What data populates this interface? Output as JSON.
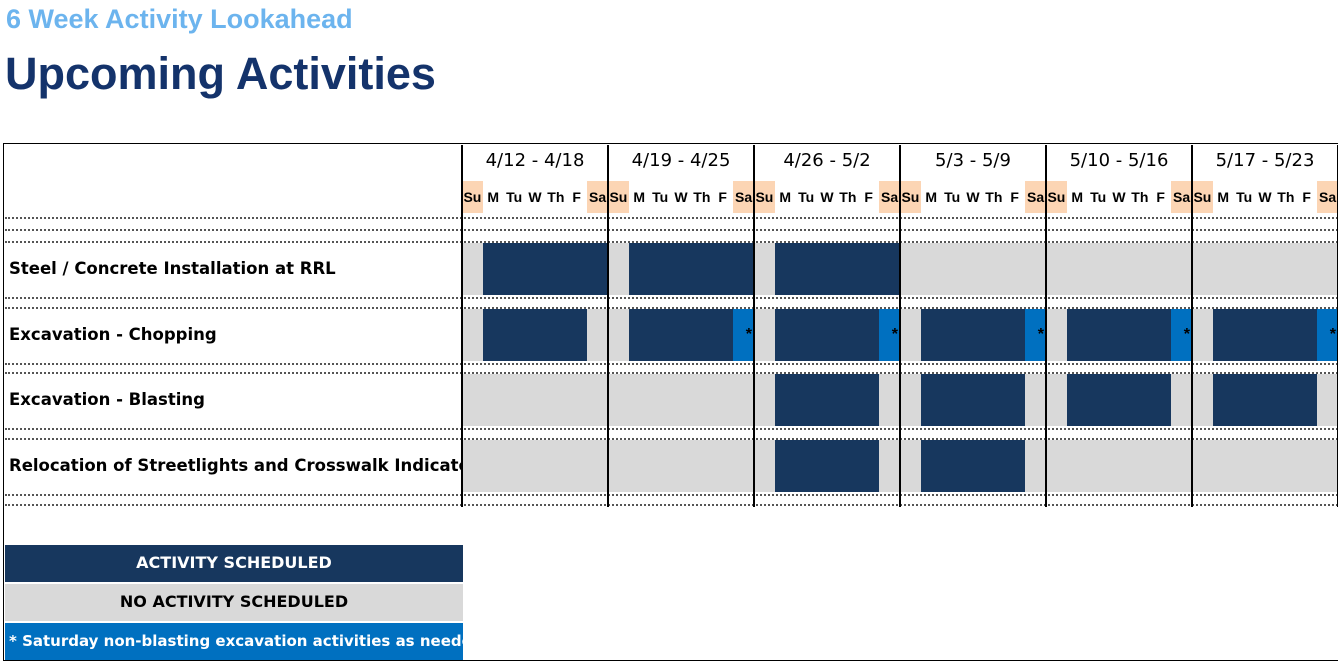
{
  "header": {
    "subtitle": "6 Week Activity Lookahead",
    "title": "Upcoming Activities"
  },
  "weeks": [
    "4/12 - 4/18",
    "4/19 - 4/25",
    "4/26 - 5/2",
    "5/3 - 5/9",
    "5/10 - 5/16",
    "5/17 - 5/23"
  ],
  "day_labels": [
    "Su",
    "M",
    "Tu",
    "W",
    "Th",
    "F",
    "Sa"
  ],
  "saturday_marker": "*",
  "activities": [
    {
      "label": "Steel / Concrete Installation at RRL",
      "weeks": [
        [
          1,
          0,
          0,
          0,
          0,
          0,
          0
        ],
        [
          1,
          0,
          0,
          0,
          0,
          0,
          0
        ],
        [
          1,
          0,
          0,
          0,
          0,
          0,
          0
        ],
        [
          1,
          1,
          1,
          1,
          1,
          1,
          1
        ],
        [
          1,
          1,
          1,
          1,
          1,
          1,
          1
        ],
        [
          1,
          1,
          1,
          1,
          1,
          1,
          1
        ]
      ]
    },
    {
      "label": "Excavation - Chopping",
      "weeks": [
        [
          1,
          0,
          0,
          0,
          0,
          0,
          1
        ],
        [
          1,
          0,
          0,
          0,
          0,
          0,
          2
        ],
        [
          1,
          0,
          0,
          0,
          0,
          0,
          2
        ],
        [
          1,
          0,
          0,
          0,
          0,
          0,
          2
        ],
        [
          1,
          0,
          0,
          0,
          0,
          0,
          2
        ],
        [
          1,
          0,
          0,
          0,
          0,
          0,
          2
        ]
      ]
    },
    {
      "label": "Excavation - Blasting",
      "weeks": [
        [
          1,
          1,
          1,
          1,
          1,
          1,
          1
        ],
        [
          1,
          1,
          1,
          1,
          1,
          1,
          1
        ],
        [
          1,
          0,
          0,
          0,
          0,
          0,
          1
        ],
        [
          1,
          0,
          0,
          0,
          0,
          0,
          1
        ],
        [
          1,
          0,
          0,
          0,
          0,
          0,
          1
        ],
        [
          1,
          0,
          0,
          0,
          0,
          0,
          1
        ]
      ]
    },
    {
      "label": "Relocation of Streetlights and Crosswalk Indicators",
      "weeks": [
        [
          1,
          1,
          1,
          1,
          1,
          1,
          1
        ],
        [
          1,
          1,
          1,
          1,
          1,
          1,
          1
        ],
        [
          1,
          0,
          0,
          0,
          0,
          0,
          1
        ],
        [
          1,
          0,
          0,
          0,
          0,
          0,
          1
        ],
        [
          1,
          1,
          1,
          1,
          1,
          1,
          1
        ],
        [
          1,
          1,
          1,
          1,
          1,
          1,
          1
        ]
      ]
    }
  ],
  "legend": [
    {
      "label": "ACTIVITY SCHEDULED",
      "color": "#17375e",
      "text_color": "#ffffff"
    },
    {
      "label": "NO ACTIVITY SCHEDULED",
      "color": "#d9d9d9",
      "text_color": "#000000"
    },
    {
      "label": "* Saturday non-blasting excavation activities as needed*",
      "color": "#0070c0",
      "text_color": "#ffffff"
    }
  ]
}
